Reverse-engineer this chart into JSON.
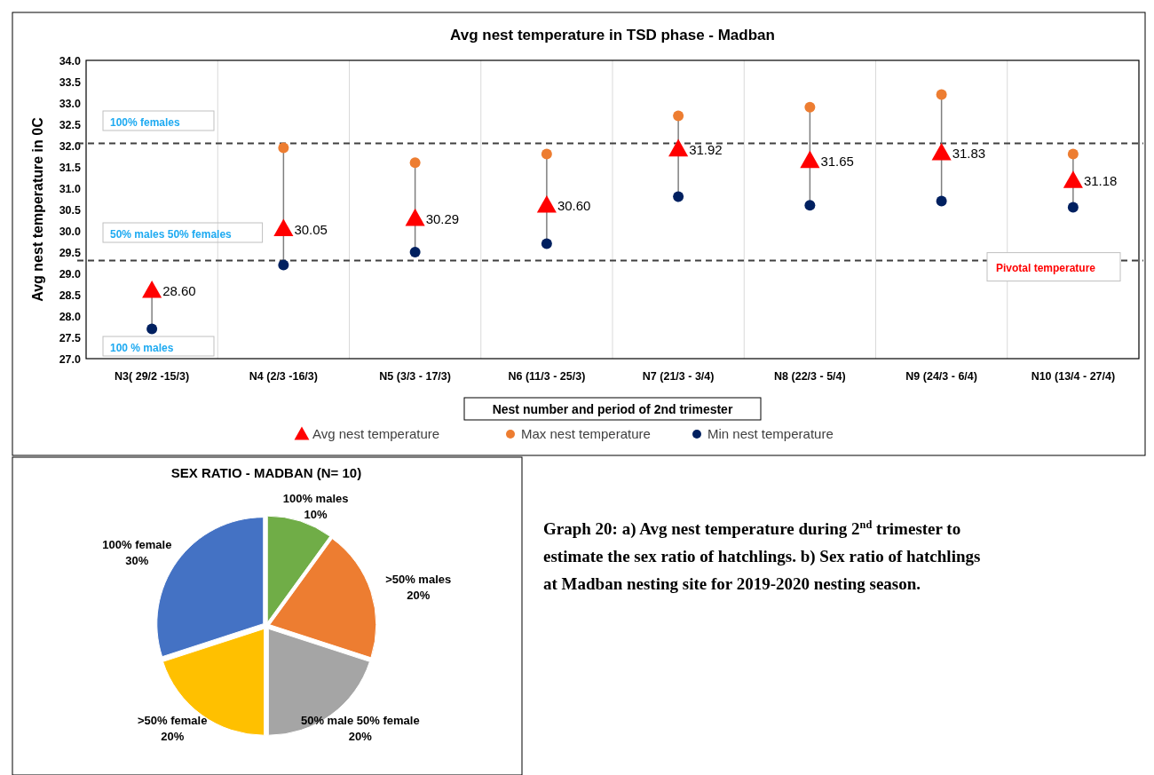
{
  "chart_data": [
    {
      "type": "scatter",
      "title": "Avg nest temperature in TSD phase - Madban",
      "xlabel": "Nest number and period of 2nd trimester",
      "ylabel": "Avg nest temperature in 0C",
      "categories": [
        "N3( 29/2 -15/3)",
        "N4 (2/3 -16/3)",
        "N5 (3/3 - 17/3)",
        "N6 (11/3 - 25/3)",
        "N7 (21/3 - 3/4)",
        "N8 (22/3 - 5/4)",
        "N9 (24/3 - 6/4)",
        "N10 (13/4 - 27/4)"
      ],
      "series": [
        {
          "name": "Avg nest temperature",
          "color": "#ff0000",
          "marker": "triangle",
          "values": [
            28.6,
            30.05,
            30.29,
            30.6,
            31.92,
            31.65,
            31.83,
            31.18
          ],
          "value_labels": [
            "28.60",
            "30.05",
            "30.29",
            "30.60",
            "31.92",
            "31.65",
            "31.83",
            "31.18"
          ]
        },
        {
          "name": "Max nest temperature",
          "color": "#ed7d31",
          "marker": "circle",
          "values": [
            null,
            31.95,
            31.6,
            31.8,
            32.7,
            32.9,
            33.2,
            31.8
          ]
        },
        {
          "name": "Min nest temperature",
          "color": "#002060",
          "marker": "circle",
          "values": [
            27.7,
            29.2,
            29.5,
            29.7,
            30.8,
            30.6,
            30.7,
            30.55
          ]
        }
      ],
      "ylim": [
        27,
        34
      ],
      "yticks": [
        {
          "value": 27,
          "label": "27.0"
        },
        {
          "value": 27.5,
          "label": "27.5"
        },
        {
          "value": 28,
          "label": "28.0"
        },
        {
          "value": 28.5,
          "label": "28.5"
        },
        {
          "value": 29,
          "label": "29.0"
        },
        {
          "value": 29.5,
          "label": "29.5"
        },
        {
          "value": 30,
          "label": "30.0"
        },
        {
          "value": 30.5,
          "label": "30.5"
        },
        {
          "value": 31,
          "label": "31.0"
        },
        {
          "value": 31.5,
          "label": "31.5"
        },
        {
          "value": 32,
          "label": "32.0"
        },
        {
          "value": 32.5,
          "label": "32.5"
        },
        {
          "value": 33,
          "label": "33.0"
        },
        {
          "value": 33.5,
          "label": "33.5"
        },
        {
          "value": 34,
          "label": "34.0"
        }
      ],
      "ref_lines": [
        {
          "axis": "y",
          "value": 32.05,
          "line_style": "dashed",
          "color": "#404040"
        },
        {
          "axis": "y",
          "value": 29.3,
          "label": "Pivotal temperature",
          "line_style": "dashed",
          "color": "#404040"
        }
      ],
      "annotations": [
        "100% females",
        "50% males 50% females",
        "100 % males"
      ],
      "grid": "x",
      "legend": "bottom"
    },
    {
      "type": "pie",
      "title": "SEX RATIO - MADBAN (N= 10)",
      "categories": [
        "100% males",
        ">50% males",
        "50% male 50% female",
        ">50% female",
        "100% female"
      ],
      "values": [
        10,
        20,
        20,
        20,
        30
      ],
      "value_labels": [
        "10%",
        "20%",
        "20%",
        "20%",
        "30%"
      ],
      "colors": [
        "#70ad47",
        "#ed7d31",
        "#a5a5a5",
        "#ffc000",
        "#4472c4"
      ],
      "annotations": [
        "Graph 20: a) Avg nest temperature during 2$^{nd}$ trimester to estimate the sex ratio of hatchlings. b) Sex ratio of hatchlings at Madban nesting site for 2019-2020 nesting season."
      ]
    }
  ]
}
